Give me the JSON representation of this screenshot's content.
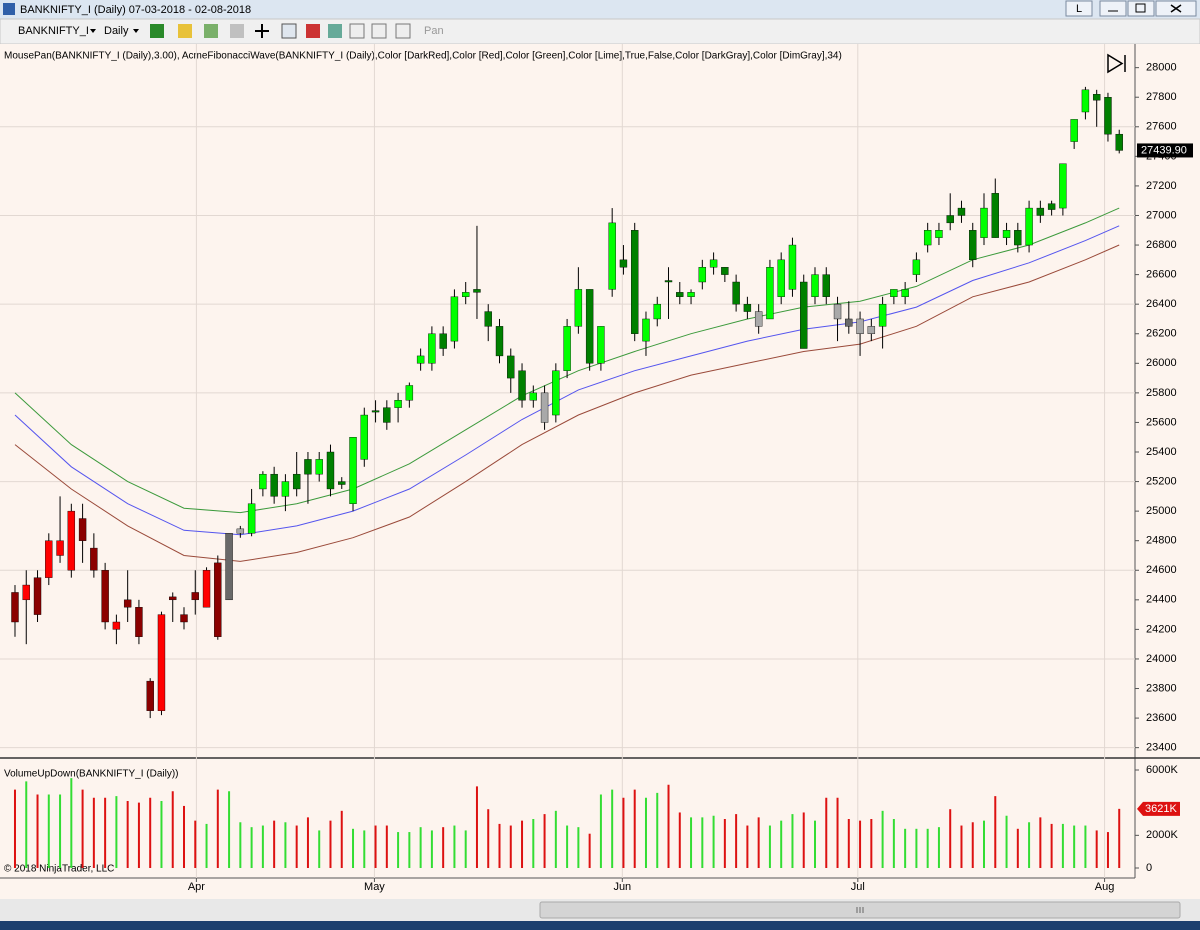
{
  "window": {
    "title": "BANKNIFTY_I (Daily)  07-03-2018 - 02-08-2018",
    "button": "L"
  },
  "toolbar": {
    "instrument": "BANKNIFTY_I",
    "interval": "Daily",
    "mode": "Pan"
  },
  "footer": {
    "copyright": "© 2018 NinjaTrader, LLC"
  },
  "chart_data": [
    {
      "type": "candlestick",
      "title": "MousePan(BANKNIFTY_I (Daily),3.00), AcmeFibonacciWave(BANKNIFTY_I (Daily),Color [DarkRed],Color [Red],Color [Green],Color [Lime],True,False,Color [DarkGray],Color [DimGray],34)",
      "open": [
        24450,
        24400,
        24550,
        24550,
        24700,
        24600,
        24950,
        24750,
        24600,
        24200,
        24400,
        24350,
        23850,
        23650,
        24420,
        24300,
        24450,
        24350,
        24650,
        24400,
        24850,
        24850,
        25150,
        25250,
        25100,
        25250,
        25350,
        25250,
        25400,
        25200,
        25050,
        25350,
        25680,
        25700,
        25700,
        25750,
        26000,
        26000,
        26200,
        26150,
        26450,
        26500,
        26350,
        26250,
        26050,
        25950,
        25750,
        25800,
        25650,
        25950,
        26250,
        26500,
        26000,
        26500,
        26700,
        26900,
        26150,
        26300,
        26560,
        26480,
        26450,
        26550,
        26650,
        26650,
        26550,
        26400,
        26350,
        26300,
        26450,
        26500,
        26550,
        26450,
        26600,
        26400,
        26300,
        26300,
        26250,
        26250,
        26450,
        26450,
        26600,
        26800,
        26850,
        27000,
        27050,
        26900,
        26850,
        27150,
        26850,
        26900,
        26800,
        27050,
        27080,
        27050,
        27500,
        27700,
        27820,
        27800,
        27550
      ],
      "high": [
        24500,
        24600,
        24600,
        24850,
        25100,
        25050,
        25050,
        24850,
        24650,
        24300,
        24600,
        24400,
        23870,
        24320,
        24450,
        24350,
        24600,
        24620,
        24700,
        24850,
        24900,
        25150,
        25270,
        25300,
        25250,
        25400,
        25400,
        25400,
        25450,
        25230,
        25500,
        25700,
        25750,
        25750,
        25800,
        25870,
        26100,
        26250,
        26250,
        26500,
        26550,
        26930,
        26400,
        26300,
        26100,
        26000,
        25850,
        25850,
        26000,
        26300,
        26650,
        26500,
        26250,
        27050,
        26800,
        26950,
        26350,
        26450,
        26650,
        26550,
        26500,
        26700,
        26750,
        26650,
        26600,
        26450,
        26400,
        26700,
        26750,
        26850,
        26600,
        26650,
        26650,
        26450,
        26420,
        26350,
        26300,
        26450,
        26500,
        26550,
        26750,
        26950,
        26950,
        27150,
        27100,
        26950,
        27150,
        27250,
        26950,
        26950,
        27100,
        27100,
        27100,
        27350,
        27650,
        27870,
        27850,
        27830,
        27580
      ],
      "low": [
        24150,
        24100,
        24250,
        24500,
        24650,
        24550,
        24650,
        24550,
        24200,
        24100,
        24250,
        24100,
        23600,
        23620,
        24250,
        24200,
        24300,
        24350,
        24130,
        24400,
        24820,
        24830,
        25100,
        25050,
        25000,
        25100,
        25050,
        25200,
        25100,
        25150,
        25000,
        25300,
        25600,
        25550,
        25600,
        25700,
        25950,
        25950,
        26050,
        26100,
        26400,
        26300,
        26150,
        26000,
        25800,
        25700,
        25700,
        25550,
        25600,
        25900,
        26200,
        25950,
        25950,
        26450,
        26600,
        26150,
        26050,
        26250,
        26300,
        26400,
        26400,
        26500,
        26600,
        26550,
        26350,
        26300,
        26200,
        26300,
        26400,
        26450,
        26100,
        26400,
        26400,
        26150,
        26200,
        26050,
        26150,
        26100,
        26400,
        26400,
        26550,
        26750,
        26800,
        26900,
        26950,
        26650,
        26800,
        26850,
        26800,
        26750,
        26750,
        26950,
        27000,
        27000,
        27450,
        27650,
        27600,
        27500,
        27420
      ],
      "close": [
        24250,
        24500,
        24300,
        24800,
        24800,
        25000,
        24800,
        24600,
        24250,
        24250,
        24350,
        24150,
        23650,
        24300,
        24400,
        24250,
        24400,
        24600,
        24150,
        24850,
        24880,
        25050,
        25250,
        25100,
        25200,
        25150,
        25250,
        25350,
        25150,
        25180,
        25500,
        25650,
        25670,
        25600,
        25750,
        25850,
        26050,
        26200,
        26100,
        26450,
        26480,
        26480,
        26250,
        26050,
        25900,
        25750,
        25800,
        25600,
        25950,
        26250,
        26500,
        26000,
        26250,
        26950,
        26650,
        26200,
        26300,
        26400,
        26550,
        26450,
        26480,
        26650,
        26700,
        26600,
        26400,
        26350,
        26250,
        26650,
        26700,
        26800,
        26100,
        26600,
        26450,
        26300,
        26250,
        26200,
        26200,
        26400,
        26500,
        26500,
        26700,
        26900,
        26900,
        26950,
        27000,
        26700,
        27050,
        26850,
        26900,
        26800,
        27050,
        27000,
        27040,
        27350,
        27650,
        27850,
        27780,
        27550,
        27440
      ],
      "colors": [
        "#8b0000",
        "#ff0000",
        "#8b0000",
        "#ff0000",
        "#ff0000",
        "#ff0000",
        "#8b0000",
        "#8b0000",
        "#8b0000",
        "#ff0000",
        "#8b0000",
        "#8b0000",
        "#8b0000",
        "#ff0000",
        "#8b0000",
        "#8b0000",
        "#8b0000",
        "#ff0000",
        "#8b0000",
        "#696969",
        "#a9a9a9",
        "#00ff00",
        "#00ff00",
        "#008000",
        "#00ff00",
        "#008000",
        "#008000",
        "#00ff00",
        "#008000",
        "#008000",
        "#00ff00",
        "#00ff00",
        "#008000",
        "#008000",
        "#00ff00",
        "#00ff00",
        "#00ff00",
        "#00ff00",
        "#008000",
        "#00ff00",
        "#00ff00",
        "#008000",
        "#008000",
        "#008000",
        "#008000",
        "#008000",
        "#00ff00",
        "#a9a9a9",
        "#00ff00",
        "#00ff00",
        "#00ff00",
        "#008000",
        "#00ff00",
        "#00ff00",
        "#008000",
        "#008000",
        "#00ff00",
        "#00ff00",
        "#008000",
        "#008000",
        "#00ff00",
        "#00ff00",
        "#00ff00",
        "#008000",
        "#008000",
        "#008000",
        "#a9a9a9",
        "#00ff00",
        "#00ff00",
        "#00ff00",
        "#008000",
        "#00ff00",
        "#008000",
        "#a9a9a9",
        "#696969",
        "#a9a9a9",
        "#a9a9a9",
        "#00ff00",
        "#00ff00",
        "#00ff00",
        "#00ff00",
        "#00ff00",
        "#00ff00",
        "#008000",
        "#008000",
        "#008000",
        "#00ff00",
        "#008000",
        "#00ff00",
        "#008000",
        "#00ff00",
        "#008000",
        "#008000",
        "#00ff00",
        "#00ff00",
        "#00ff00",
        "#008000",
        "#008000",
        "#008000"
      ],
      "envelopes": [
        {
          "color": "#3c9a3c",
          "x": [
            0,
            5,
            10,
            15,
            20,
            25,
            30,
            35,
            40,
            45,
            50,
            55,
            60,
            65,
            70,
            75,
            80,
            85,
            90,
            95,
            98
          ],
          "values": [
            25800,
            25450,
            25200,
            25020,
            24990,
            25050,
            25150,
            25320,
            25550,
            25780,
            25950,
            26080,
            26200,
            26300,
            26380,
            26420,
            26520,
            26700,
            26800,
            26950,
            27050
          ]
        },
        {
          "color": "#5555ee",
          "x": [
            0,
            5,
            10,
            15,
            20,
            25,
            30,
            35,
            40,
            45,
            50,
            55,
            60,
            65,
            70,
            75,
            80,
            85,
            90,
            95,
            98
          ],
          "values": [
            25650,
            25300,
            25050,
            24870,
            24840,
            24900,
            25000,
            25150,
            25380,
            25620,
            25820,
            25950,
            26050,
            26150,
            26230,
            26280,
            26380,
            26560,
            26680,
            26830,
            26930
          ]
        },
        {
          "color": "#9a4a3a",
          "x": [
            0,
            5,
            10,
            15,
            20,
            25,
            30,
            35,
            40,
            45,
            50,
            55,
            60,
            65,
            70,
            75,
            80,
            85,
            90,
            95,
            98
          ],
          "values": [
            25450,
            25150,
            24900,
            24700,
            24660,
            24720,
            24820,
            24960,
            25200,
            25450,
            25650,
            25800,
            25920,
            26000,
            26080,
            26130,
            26250,
            26450,
            26550,
            26700,
            26800
          ]
        }
      ],
      "last_price": {
        "value": 27439.9,
        "label": "27439.90"
      },
      "xlim": [
        -1.33,
        99.4
      ],
      "xticks": [
        {
          "value": 16.1,
          "label": "Apr"
        },
        {
          "value": 31.9,
          "label": "May"
        },
        {
          "value": 53.9,
          "label": "Jun"
        },
        {
          "value": 74.8,
          "label": "Jul"
        },
        {
          "value": 96.7,
          "label": "Aug"
        }
      ],
      "ylim": [
        23330,
        28160
      ],
      "yticks": [
        23400,
        23600,
        23800,
        24000,
        24200,
        24400,
        24600,
        24800,
        25000,
        25200,
        25400,
        25600,
        25800,
        26000,
        26200,
        26400,
        26600,
        26800,
        27000,
        27200,
        27400,
        27600,
        27800,
        28000
      ],
      "ygrid": [
        23400,
        24000,
        24600,
        25200,
        25800,
        26400,
        27000,
        27600
      ]
    },
    {
      "type": "bar",
      "title": "VolumeUpDown(BANKNIFTY_I (Daily))",
      "values": [
        4800,
        5300,
        4500,
        4500,
        4500,
        5500,
        4800,
        4300,
        4300,
        4400,
        4100,
        4000,
        4300,
        4100,
        4700,
        3800,
        2900,
        2700,
        4800,
        4700,
        2800,
        2500,
        2600,
        2900,
        2800,
        2600,
        3100,
        2300,
        2900,
        3500,
        2400,
        2300,
        2600,
        2600,
        2200,
        2200,
        2500,
        2300,
        2500,
        2600,
        2300,
        5000,
        3600,
        2700,
        2600,
        2900,
        3000,
        3300,
        3500,
        2600,
        2500,
        2100,
        4500,
        4800,
        4300,
        4800,
        4300,
        4600,
        5100,
        3400,
        3100,
        3100,
        3200,
        3000,
        3300,
        2600,
        3100,
        2600,
        2900,
        3300,
        3400,
        2900,
        4300,
        4300,
        3000,
        2900,
        3000,
        3500,
        3000,
        2400,
        2400,
        2400,
        2500,
        3600,
        2600,
        2800,
        2900,
        4400,
        3200,
        2400,
        2800,
        3100,
        2700,
        2700,
        2600,
        2600,
        2300,
        2200,
        3621
      ],
      "up_color": "#33dd33",
      "down_color": "#dd1111",
      "last_value": {
        "value": 3621,
        "label": "3621K"
      },
      "ylim": [
        -612,
        6612
      ],
      "yticks": [
        0,
        {
          "value": 2000,
          "label": "2000K"
        },
        {
          "value": 6000,
          "label": "6000K"
        }
      ]
    }
  ]
}
